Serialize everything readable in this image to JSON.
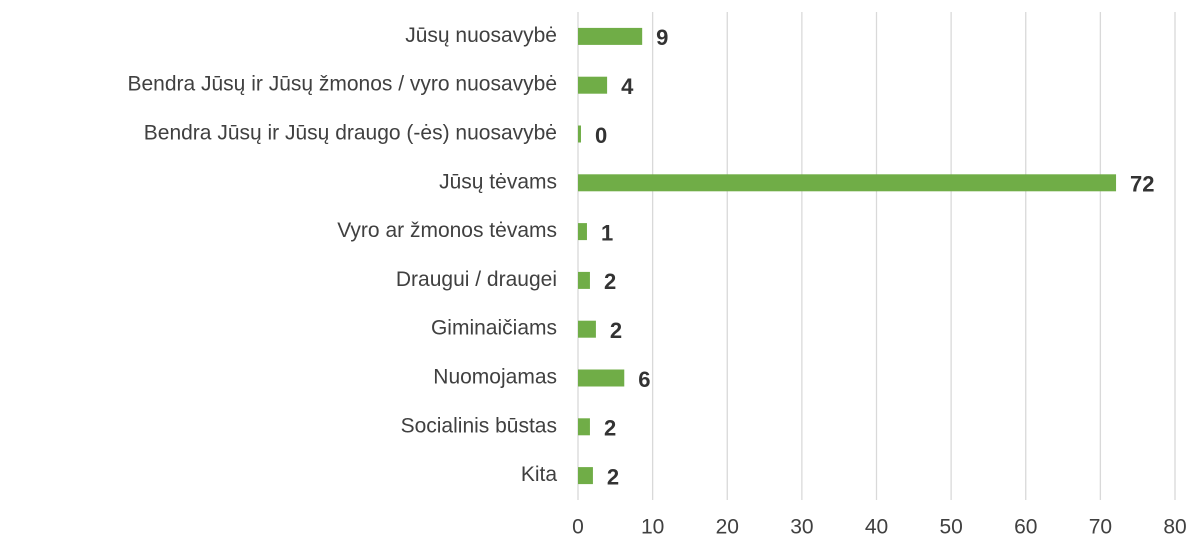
{
  "chart_data": {
    "type": "hbar",
    "categories": [
      "Jūsų nuosavybė",
      "Bendra Jūsų ir Jūsų žmonos / vyro nuosavybė",
      "Bendra Jūsų ir Jūsų draugo (-ės) nuosavybė",
      "Jūsų tėvams",
      "Vyro ar žmonos tėvams",
      "Draugui / draugei",
      "Giminaičiams",
      "Nuomojamas",
      "Socialinis būstas",
      "Kita"
    ],
    "values": [
      8.6,
      3.9,
      0.4,
      72.1,
      1.2,
      1.6,
      2.4,
      6.2,
      1.6,
      2.0
    ],
    "value_labels": [
      "9",
      "4",
      "0",
      "72",
      "1",
      "2",
      "2",
      "6",
      "2",
      "2"
    ],
    "color": "#70ad47",
    "xlim": [
      0,
      80
    ],
    "xticks": [
      0,
      10,
      20,
      30,
      40,
      50,
      60,
      70,
      80
    ],
    "grid": true
  }
}
